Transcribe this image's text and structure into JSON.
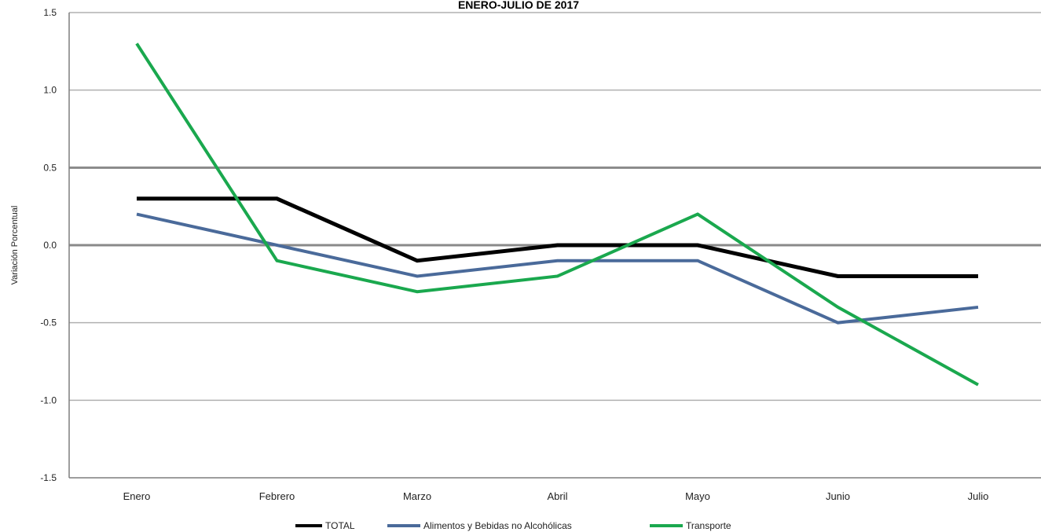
{
  "chart_data": {
    "type": "line",
    "title": "ENERO-JULIO  DE  2017",
    "ylabel": "Variación Porcentual",
    "xlabel": "",
    "categories": [
      "Enero",
      "Febrero",
      "Marzo",
      "Abril",
      "Mayo",
      "Junio",
      "Julio"
    ],
    "ylim": [
      -1.5,
      1.5
    ],
    "yticks": [
      "1.5",
      "1.0",
      "0.5",
      "0.0",
      "-0.5",
      "-1.0",
      "-1.5"
    ],
    "ytick_values": [
      1.5,
      1.0,
      0.5,
      0.0,
      -0.5,
      -1.0,
      -1.5
    ],
    "grid": true,
    "legend_position": "bottom",
    "series": [
      {
        "name": "TOTAL",
        "color": "#000000",
        "values": [
          0.3,
          0.3,
          -0.1,
          0.0,
          0.0,
          -0.2,
          -0.2
        ]
      },
      {
        "name": "Alimentos y Bebidas no Alcohólicas",
        "color": "#4a6a9a",
        "values": [
          0.2,
          0.0,
          -0.2,
          -0.1,
          -0.1,
          -0.5,
          -0.4
        ]
      },
      {
        "name": "Transporte",
        "color": "#1aa84e",
        "values": [
          1.3,
          -0.1,
          -0.3,
          -0.2,
          0.2,
          -0.4,
          -0.9
        ]
      }
    ]
  }
}
